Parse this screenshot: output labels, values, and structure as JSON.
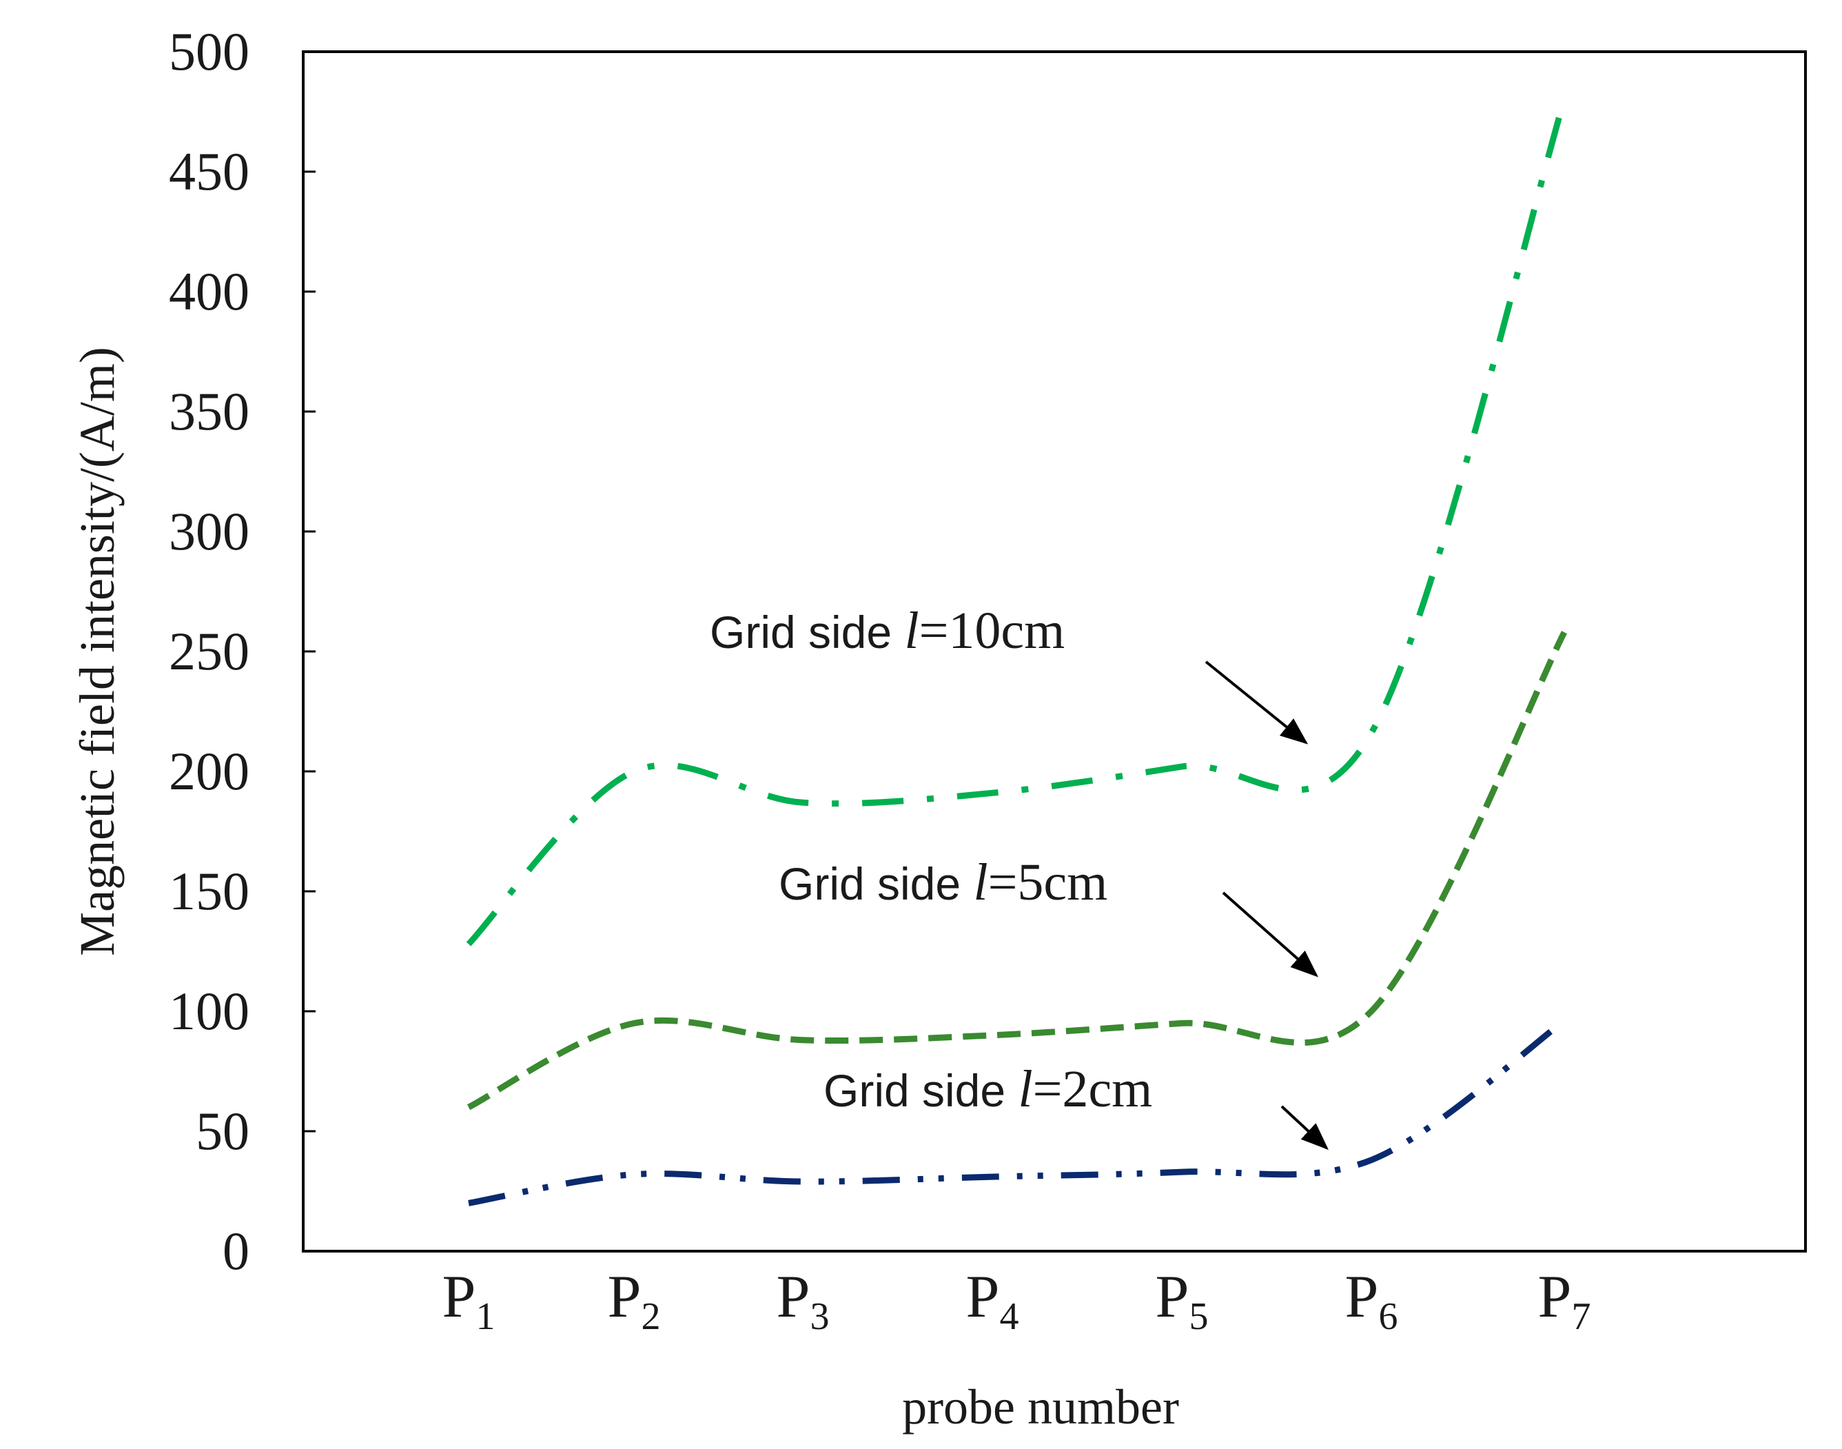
{
  "chart_data": {
    "type": "line",
    "title": "",
    "xlabel": "probe number",
    "ylabel": "Magnetic field intensity/(A/m)",
    "ylim": [
      0,
      500
    ],
    "yticks": [
      0,
      50,
      100,
      150,
      200,
      250,
      300,
      350,
      400,
      450,
      500
    ],
    "categories": [
      {
        "base": "P",
        "sub": "1"
      },
      {
        "base": "P",
        "sub": "2"
      },
      {
        "base": "P",
        "sub": "3"
      },
      {
        "base": "P",
        "sub": "4"
      },
      {
        "base": "P",
        "sub": "5"
      },
      {
        "base": "P",
        "sub": "6"
      },
      {
        "base": "P",
        "sub": "7"
      }
    ],
    "grid": false,
    "series": [
      {
        "name": "Grid side l=10cm",
        "label_prefix": "Grid side ",
        "label_var": "l",
        "label_value": "=10cm",
        "color": "#00b050",
        "dash": "dash-dot",
        "values": [
          128,
          200,
          187,
          191,
          202,
          216,
          480
        ]
      },
      {
        "name": "Grid side l=5cm",
        "label_prefix": "Grid side ",
        "label_var": "l",
        "label_value": "=5cm",
        "color": "#3a8a30",
        "dash": "dash",
        "values": [
          60,
          95,
          88,
          90,
          95,
          100,
          258
        ]
      },
      {
        "name": "Grid side l=2cm",
        "label_prefix": "Grid side ",
        "label_var": "l",
        "label_value": "=2cm",
        "color": "#0a2a6e",
        "dash": "dash-dot-dot",
        "values": [
          20,
          32,
          29,
          31,
          33,
          38,
          96
        ]
      }
    ],
    "annotations": [
      {
        "series": 0,
        "target_category": 5,
        "target_value": 212
      },
      {
        "series": 1,
        "target_category": 5,
        "target_value": 115
      },
      {
        "series": 2,
        "target_category": 5,
        "target_value": 43
      }
    ]
  }
}
